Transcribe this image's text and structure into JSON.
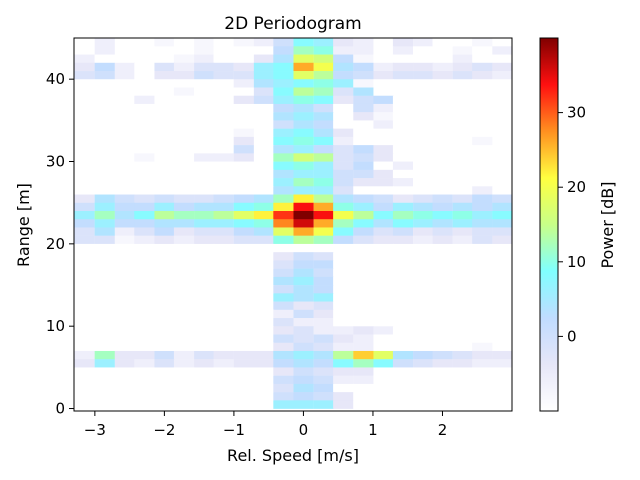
{
  "chart_data": {
    "type": "heatmap",
    "title": "2D Periodogram",
    "xlabel": "Rel. Speed [m/s]",
    "ylabel": "Range [m]",
    "colorbar_label": "Power [dB]",
    "xlim": [
      -3.3,
      3.0
    ],
    "ylim": [
      -0.3,
      45.0
    ],
    "zlim": [
      -10,
      40
    ],
    "x_ticks": [
      -3,
      -2,
      -1,
      0,
      1,
      2
    ],
    "x_tick_labels": [
      "−3",
      "−2",
      "−1",
      "0",
      "1",
      "2"
    ],
    "y_ticks": [
      0,
      10,
      20,
      30,
      40
    ],
    "y_tick_labels": [
      "0",
      "10",
      "20",
      "30",
      "40"
    ],
    "colorbar_ticks": [
      0,
      10,
      20,
      30
    ],
    "colorbar_tick_labels": [
      "0",
      "10",
      "20",
      "30"
    ],
    "colormap": "jet with low values fading to white",
    "colormap_stops": [
      "#ffffff",
      "#e6e6f8",
      "#c0dcff",
      "#80ffff",
      "#c8ff88",
      "#ffff40",
      "#ff9020",
      "#ff1010",
      "#800000"
    ],
    "grid": false,
    "x_centers": [
      -3.15,
      -2.86,
      -2.57,
      -2.29,
      -2.0,
      -1.72,
      -1.43,
      -1.15,
      -0.86,
      -0.57,
      -0.29,
      0.0,
      0.29,
      0.57,
      0.86,
      1.15,
      1.43,
      1.72,
      2.0,
      2.29,
      2.57,
      2.86
    ],
    "range_bin_width": 0.98,
    "speed_bin_width": 0.286,
    "rows": [
      {
        "range": 44.5,
        "values": [
          -10,
          -6,
          -10,
          -10,
          -8,
          -10,
          -8,
          -10,
          -8,
          -6,
          0,
          8,
          6,
          -4,
          -6,
          -10,
          -4,
          -6,
          -10,
          -10,
          -8,
          -10
        ]
      },
      {
        "range": 43.5,
        "values": [
          -10,
          -6,
          -10,
          -10,
          -10,
          -10,
          -8,
          -10,
          -10,
          -10,
          2,
          12,
          10,
          -6,
          -6,
          -10,
          -6,
          -10,
          -10,
          -8,
          -10,
          -6
        ]
      },
      {
        "range": 42.5,
        "values": [
          -6,
          -10,
          -10,
          -10,
          -10,
          -8,
          -6,
          -10,
          -10,
          -4,
          4,
          18,
          16,
          2,
          -8,
          -10,
          -10,
          -10,
          -10,
          -6,
          -10,
          -10
        ]
      },
      {
        "range": 41.5,
        "values": [
          -4,
          2,
          -6,
          -10,
          -2,
          -6,
          -2,
          -2,
          -4,
          6,
          8,
          26,
          20,
          4,
          2,
          -6,
          -4,
          -4,
          -6,
          -4,
          -2,
          -4
        ]
      },
      {
        "range": 40.5,
        "values": [
          -2,
          0,
          -6,
          -10,
          -4,
          -4,
          0,
          -2,
          -2,
          6,
          8,
          18,
          14,
          2,
          0,
          -4,
          -2,
          -2,
          -4,
          -2,
          -4,
          -6
        ]
      },
      {
        "range": 39.5,
        "values": [
          -10,
          -10,
          -10,
          -10,
          -10,
          -10,
          -10,
          -10,
          -6,
          4,
          6,
          8,
          10,
          6,
          -8,
          -10,
          -10,
          -10,
          -10,
          -10,
          -10,
          -10
        ]
      },
      {
        "range": 38.5,
        "values": [
          -10,
          -10,
          -10,
          -10,
          -10,
          -8,
          -10,
          -10,
          -10,
          -2,
          8,
          14,
          12,
          -2,
          4,
          -10,
          -10,
          -10,
          -10,
          -10,
          -10,
          -10
        ]
      },
      {
        "range": 37.5,
        "values": [
          -10,
          -10,
          -10,
          -6,
          -10,
          -10,
          -10,
          -10,
          -4,
          0,
          6,
          10,
          8,
          -4,
          0,
          2,
          -10,
          -10,
          -10,
          -10,
          -10,
          -10
        ]
      },
      {
        "range": 36.5,
        "values": [
          -10,
          -10,
          -10,
          -10,
          -10,
          -10,
          -10,
          -10,
          -10,
          -10,
          2,
          4,
          0,
          -10,
          0,
          -6,
          -10,
          -10,
          -10,
          -10,
          -10,
          -10
        ]
      },
      {
        "range": 35.5,
        "values": [
          -10,
          -10,
          -10,
          -10,
          -10,
          -10,
          -10,
          -10,
          -10,
          -10,
          4,
          6,
          4,
          -10,
          -4,
          -8,
          -10,
          -10,
          -10,
          -10,
          -10,
          -10
        ]
      },
      {
        "range": 34.5,
        "values": [
          -10,
          -10,
          -10,
          -10,
          -10,
          -10,
          -10,
          -10,
          -10,
          -10,
          0,
          4,
          2,
          -10,
          -10,
          -6,
          -10,
          -10,
          -10,
          -10,
          -10,
          -10
        ]
      },
      {
        "range": 33.5,
        "values": [
          -10,
          -10,
          -10,
          -10,
          -10,
          -10,
          -10,
          -10,
          -8,
          -10,
          6,
          8,
          4,
          -4,
          -10,
          -10,
          -10,
          -10,
          -10,
          -10,
          -10,
          -10
        ]
      },
      {
        "range": 32.5,
        "values": [
          -10,
          -10,
          -10,
          -10,
          -10,
          -10,
          -10,
          -10,
          -4,
          -10,
          8,
          10,
          8,
          -6,
          -10,
          -10,
          -10,
          -10,
          -10,
          -10,
          -8,
          -10
        ]
      },
      {
        "range": 31.5,
        "values": [
          -10,
          -10,
          -10,
          -10,
          -10,
          -10,
          -10,
          -10,
          0,
          -10,
          4,
          6,
          2,
          -2,
          2,
          -4,
          -10,
          -10,
          -10,
          -10,
          -10,
          -10
        ]
      },
      {
        "range": 30.5,
        "values": [
          -10,
          -10,
          -10,
          -8,
          -10,
          -10,
          -6,
          -6,
          -4,
          -10,
          12,
          16,
          14,
          -2,
          0,
          -4,
          -10,
          -10,
          -10,
          -10,
          -10,
          -10
        ]
      },
      {
        "range": 29.5,
        "values": [
          -10,
          -10,
          -10,
          -10,
          -10,
          -10,
          -10,
          -10,
          -10,
          -10,
          8,
          10,
          6,
          -2,
          2,
          -10,
          -6,
          -10,
          -10,
          -10,
          -10,
          -10
        ]
      },
      {
        "range": 28.5,
        "values": [
          -10,
          -10,
          -10,
          -10,
          -10,
          -10,
          -10,
          -10,
          -10,
          -10,
          4,
          6,
          6,
          0,
          0,
          -4,
          -10,
          -10,
          -10,
          -10,
          -10,
          -10
        ]
      },
      {
        "range": 27.5,
        "values": [
          -10,
          -10,
          -10,
          -10,
          -10,
          -10,
          -10,
          -10,
          -10,
          -10,
          6,
          12,
          10,
          0,
          -4,
          -4,
          -6,
          -10,
          -10,
          -10,
          -10,
          -10
        ]
      },
      {
        "range": 26.5,
        "values": [
          -10,
          -10,
          -10,
          -10,
          -10,
          -10,
          -10,
          -10,
          -10,
          -10,
          4,
          6,
          6,
          -2,
          -10,
          -10,
          -10,
          -10,
          -10,
          -10,
          -6,
          -10
        ]
      },
      {
        "range": 25.5,
        "values": [
          -4,
          4,
          0,
          -2,
          0,
          -2,
          -2,
          0,
          2,
          4,
          12,
          22,
          14,
          4,
          2,
          0,
          -4,
          -2,
          0,
          -2,
          2,
          0
        ]
      },
      {
        "range": 24.5,
        "values": [
          0,
          6,
          2,
          2,
          6,
          2,
          4,
          4,
          8,
          10,
          22,
          34,
          26,
          10,
          6,
          2,
          6,
          4,
          2,
          4,
          2,
          4
        ]
      },
      {
        "range": 23.5,
        "values": [
          6,
          12,
          4,
          8,
          14,
          12,
          12,
          14,
          18,
          22,
          32,
          40,
          34,
          20,
          14,
          8,
          12,
          10,
          8,
          10,
          6,
          8
        ]
      },
      {
        "range": 22.5,
        "values": [
          2,
          6,
          2,
          2,
          4,
          4,
          6,
          6,
          8,
          10,
          28,
          36,
          26,
          12,
          8,
          4,
          8,
          6,
          4,
          6,
          4,
          4
        ]
      },
      {
        "range": 21.5,
        "values": [
          -2,
          4,
          -6,
          -2,
          2,
          -4,
          -2,
          -2,
          2,
          4,
          18,
          26,
          20,
          8,
          2,
          -2,
          0,
          -4,
          -2,
          -4,
          -2,
          -2
        ]
      },
      {
        "range": 20.5,
        "values": [
          -2,
          -2,
          -8,
          -6,
          -4,
          -6,
          -4,
          -4,
          -2,
          -2,
          10,
          14,
          12,
          2,
          -2,
          -4,
          -4,
          -6,
          -4,
          -6,
          -2,
          -4
        ]
      },
      {
        "range": 19.5,
        "values": [
          -10,
          -10,
          -10,
          -10,
          -10,
          -10,
          -10,
          -10,
          -10,
          -10,
          -10,
          -10,
          -10,
          -10,
          -10,
          -10,
          -10,
          -10,
          -10,
          -10,
          -10,
          -10
        ]
      },
      {
        "range": 18.5,
        "values": [
          -10,
          -10,
          -10,
          -10,
          -10,
          -10,
          -10,
          -10,
          -10,
          -10,
          -4,
          0,
          -2,
          -10,
          -10,
          -10,
          -10,
          -10,
          -10,
          -10,
          -10,
          -10
        ]
      },
      {
        "range": 17.5,
        "values": [
          -10,
          -10,
          -10,
          -10,
          -10,
          -10,
          -10,
          -10,
          -10,
          -10,
          -2,
          2,
          2,
          -10,
          -10,
          -10,
          -10,
          -10,
          -10,
          -10,
          -10,
          -10
        ]
      },
      {
        "range": 16.5,
        "values": [
          -10,
          -10,
          -10,
          -10,
          -10,
          -10,
          -10,
          -10,
          -10,
          -10,
          0,
          4,
          0,
          -10,
          -10,
          -10,
          -10,
          -10,
          -10,
          -10,
          -10,
          -10
        ]
      },
      {
        "range": 15.5,
        "values": [
          -10,
          -10,
          -10,
          -10,
          -10,
          -10,
          -10,
          -10,
          -10,
          -10,
          4,
          6,
          2,
          -10,
          -10,
          -10,
          -10,
          -10,
          -10,
          -10,
          -10,
          -10
        ]
      },
      {
        "range": 14.5,
        "values": [
          -10,
          -10,
          -10,
          -10,
          -10,
          -10,
          -10,
          -10,
          -10,
          -10,
          0,
          4,
          2,
          -10,
          -10,
          -10,
          -10,
          -10,
          -10,
          -10,
          -10,
          -10
        ]
      },
      {
        "range": 13.5,
        "values": [
          -10,
          -10,
          -10,
          -10,
          -10,
          -10,
          -10,
          -10,
          -10,
          -10,
          6,
          4,
          6,
          -10,
          -10,
          -10,
          -10,
          -10,
          -10,
          -10,
          -10,
          -10
        ]
      },
      {
        "range": 12.5,
        "values": [
          -10,
          -10,
          -10,
          -10,
          -10,
          -10,
          -10,
          -10,
          -10,
          -10,
          0,
          -4,
          -2,
          -10,
          -10,
          -10,
          -10,
          -10,
          -10,
          -10,
          -10,
          -10
        ]
      },
      {
        "range": 11.5,
        "values": [
          -10,
          -10,
          -10,
          -10,
          -10,
          -10,
          -10,
          -10,
          -10,
          -10,
          -6,
          0,
          -4,
          -10,
          -10,
          -10,
          -10,
          -10,
          -10,
          -10,
          -10,
          -10
        ]
      },
      {
        "range": 10.5,
        "values": [
          -10,
          -10,
          -10,
          -10,
          -10,
          -10,
          -10,
          -10,
          -10,
          -10,
          -2,
          -6,
          -6,
          -10,
          -10,
          -10,
          -10,
          -10,
          -10,
          -10,
          -10,
          -10
        ]
      },
      {
        "range": 9.5,
        "values": [
          -10,
          -10,
          -10,
          -10,
          -10,
          -10,
          -10,
          -10,
          -10,
          -10,
          -4,
          -2,
          -6,
          -6,
          -4,
          -6,
          -10,
          -10,
          -10,
          -10,
          -10,
          -10
        ]
      },
      {
        "range": 8.5,
        "values": [
          -10,
          -10,
          -10,
          -10,
          -10,
          -10,
          -10,
          -10,
          -10,
          -10,
          0,
          -2,
          0,
          -4,
          -6,
          -10,
          -10,
          -10,
          -10,
          -10,
          -10,
          -10
        ]
      },
      {
        "range": 7.5,
        "values": [
          -10,
          -10,
          -10,
          -10,
          -10,
          -10,
          -10,
          -10,
          -10,
          -10,
          -4,
          0,
          -2,
          -6,
          -6,
          -10,
          -10,
          -10,
          -10,
          -10,
          -8,
          -10
        ]
      },
      {
        "range": 6.5,
        "values": [
          -6,
          12,
          -4,
          -4,
          0,
          -6,
          -2,
          -4,
          -4,
          -4,
          4,
          6,
          4,
          14,
          24,
          18,
          4,
          2,
          0,
          -2,
          -4,
          -4
        ]
      },
      {
        "range": 5.5,
        "values": [
          -4,
          6,
          -4,
          -6,
          -2,
          -6,
          -4,
          -6,
          -4,
          -4,
          2,
          4,
          2,
          8,
          12,
          8,
          0,
          -2,
          -4,
          -4,
          -6,
          -6
        ]
      },
      {
        "range": 4.5,
        "values": [
          -10,
          -10,
          -10,
          -10,
          -10,
          -10,
          -10,
          -10,
          -10,
          -10,
          -4,
          0,
          -2,
          -4,
          -4,
          -10,
          -10,
          -10,
          -10,
          -10,
          -10,
          -10
        ]
      },
      {
        "range": 3.5,
        "values": [
          -10,
          -10,
          -10,
          -10,
          -10,
          -10,
          -10,
          -10,
          -10,
          -10,
          0,
          2,
          0,
          -6,
          -6,
          -10,
          -10,
          -10,
          -10,
          -10,
          -10,
          -10
        ]
      },
      {
        "range": 2.5,
        "values": [
          -10,
          -10,
          -10,
          -10,
          -10,
          -10,
          -10,
          -10,
          -10,
          -10,
          -2,
          4,
          2,
          -10,
          -10,
          -10,
          -10,
          -10,
          -10,
          -10,
          -10,
          -10
        ]
      },
      {
        "range": 1.5,
        "values": [
          -10,
          -10,
          -10,
          -10,
          -10,
          -10,
          -10,
          -10,
          -10,
          -10,
          0,
          2,
          0,
          -4,
          -10,
          -10,
          -10,
          -10,
          -10,
          -10,
          -10,
          -10
        ]
      },
      {
        "range": 0.5,
        "values": [
          -10,
          -10,
          -10,
          -10,
          -10,
          -10,
          -10,
          -10,
          -10,
          -10,
          6,
          6,
          6,
          -4,
          -10,
          -10,
          -10,
          -10,
          -10,
          -10,
          -10,
          -10
        ]
      }
    ]
  }
}
